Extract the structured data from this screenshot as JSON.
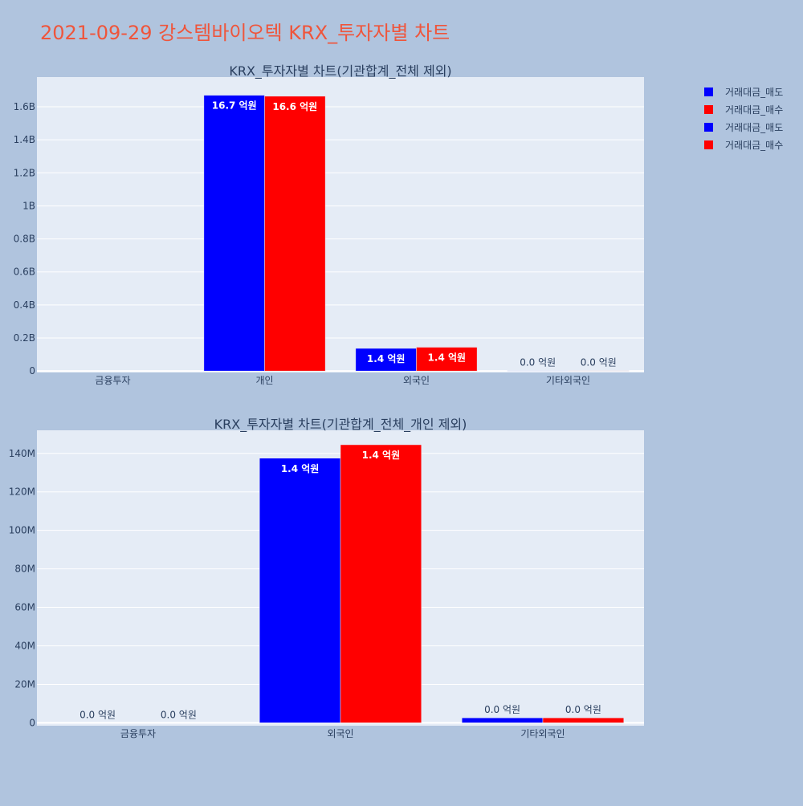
{
  "title": "2021-09-29 강스템바이오텍 KRX_투자자별 차트",
  "colors": {
    "page_bg": "#b0c4de",
    "plot_bg": "#e5ecf6",
    "title": "#ef553b",
    "text": "#2a3f5f",
    "grid": "#ffffff",
    "sell": "#0000ff",
    "buy": "#ff0000"
  },
  "legend": {
    "position": "top-right",
    "items": [
      {
        "label": "거래대금_매도",
        "color": "#0000ff"
      },
      {
        "label": "거래대금_매수",
        "color": "#ff0000"
      },
      {
        "label": "거래대금_매도",
        "color": "#0000ff"
      },
      {
        "label": "거래대금_매수",
        "color": "#ff0000"
      }
    ]
  },
  "chart_data": [
    {
      "type": "bar",
      "title": "KRX_투자자별 차트(기관합계_전체 제외)",
      "categories": [
        "금융투자",
        "개인",
        "외국인",
        "기타외국인"
      ],
      "series": [
        {
          "name": "거래대금_매도",
          "color": "#0000ff",
          "values": [
            0,
            1670000000,
            137000000,
            2600000
          ],
          "labels": [
            "",
            "16.7 억원",
            "1.4 억원",
            "0.0 억원"
          ]
        },
        {
          "name": "거래대금_매수",
          "color": "#ff0000",
          "values": [
            0,
            1664000000,
            144000000,
            2600000
          ],
          "labels": [
            "",
            "16.6 억원",
            "1.4 억원",
            "0.0 억원"
          ]
        }
      ],
      "ylim": [
        -9000000,
        1780000000
      ],
      "yticks": [
        0,
        200000000,
        400000000,
        600000000,
        800000000,
        1000000000,
        1200000000,
        1400000000,
        1600000000
      ],
      "yticklabels": [
        "0",
        "0.2B",
        "0.4B",
        "0.6B",
        "0.8B",
        "1B",
        "1.2B",
        "1.4B",
        "1.6B"
      ],
      "grid": true
    },
    {
      "type": "bar",
      "title": "KRX_투자자별 차트(기관합계_전체_개인 제외)",
      "categories": [
        "금융투자",
        "외국인",
        "기타외국인"
      ],
      "series": [
        {
          "name": "거래대금_매도",
          "color": "#0000ff",
          "values": [
            0,
            137500000,
            2600000
          ],
          "labels": [
            "0.0 억원",
            "1.4 억원",
            "0.0 억원"
          ]
        },
        {
          "name": "거래대금_매수",
          "color": "#ff0000",
          "values": [
            0,
            144500000,
            2600000
          ],
          "labels": [
            "0.0 억원",
            "1.4 억원",
            "0.0 억원"
          ]
        }
      ],
      "ylim": [
        -1500000,
        152000000
      ],
      "yticks": [
        0,
        20000000,
        40000000,
        60000000,
        80000000,
        100000000,
        120000000,
        140000000
      ],
      "yticklabels": [
        "0",
        "20M",
        "40M",
        "60M",
        "80M",
        "100M",
        "120M",
        "140M"
      ],
      "grid": true
    }
  ]
}
